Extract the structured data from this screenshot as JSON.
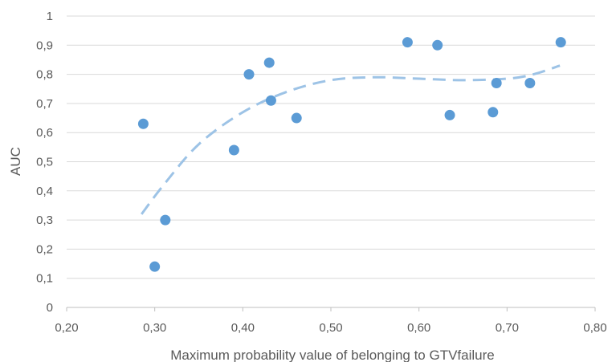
{
  "chart_data": {
    "type": "scatter",
    "title": "",
    "xlabel": "Maximum probability value of belonging to GTVfailure",
    "ylabel": "AUC",
    "xlim": [
      0.2,
      0.8
    ],
    "ylim": [
      0,
      1
    ],
    "x_ticks": [
      "0,20",
      "0,30",
      "0,40",
      "0,50",
      "0,60",
      "0,70",
      "0,80"
    ],
    "x_tick_values": [
      0.2,
      0.3,
      0.4,
      0.5,
      0.6,
      0.7,
      0.8
    ],
    "y_ticks": [
      "0",
      "0,1",
      "0,2",
      "0,3",
      "0,4",
      "0,5",
      "0,6",
      "0,7",
      "0,8",
      "0,9",
      "1"
    ],
    "y_tick_values": [
      0,
      0.1,
      0.2,
      0.3,
      0.4,
      0.5,
      0.6,
      0.7,
      0.8,
      0.9,
      1
    ],
    "grid": "horizontal",
    "legend": "none",
    "point_color": "#5b9bd5",
    "trend_color": "#9dc3e6",
    "trendline": "polynomial-dashed",
    "points": [
      {
        "x": 0.287,
        "y": 0.63
      },
      {
        "x": 0.3,
        "y": 0.14
      },
      {
        "x": 0.312,
        "y": 0.3
      },
      {
        "x": 0.39,
        "y": 0.54
      },
      {
        "x": 0.407,
        "y": 0.8
      },
      {
        "x": 0.43,
        "y": 0.84
      },
      {
        "x": 0.432,
        "y": 0.71
      },
      {
        "x": 0.461,
        "y": 0.65
      },
      {
        "x": 0.587,
        "y": 0.91
      },
      {
        "x": 0.621,
        "y": 0.9
      },
      {
        "x": 0.635,
        "y": 0.66
      },
      {
        "x": 0.684,
        "y": 0.67
      },
      {
        "x": 0.688,
        "y": 0.77
      },
      {
        "x": 0.726,
        "y": 0.77
      },
      {
        "x": 0.761,
        "y": 0.91
      }
    ],
    "trend_points": [
      {
        "x": 0.285,
        "y": 0.32
      },
      {
        "x": 0.31,
        "y": 0.42
      },
      {
        "x": 0.35,
        "y": 0.56
      },
      {
        "x": 0.4,
        "y": 0.67
      },
      {
        "x": 0.45,
        "y": 0.74
      },
      {
        "x": 0.5,
        "y": 0.78
      },
      {
        "x": 0.55,
        "y": 0.79
      },
      {
        "x": 0.6,
        "y": 0.785
      },
      {
        "x": 0.65,
        "y": 0.78
      },
      {
        "x": 0.7,
        "y": 0.785
      },
      {
        "x": 0.73,
        "y": 0.8
      },
      {
        "x": 0.76,
        "y": 0.83
      }
    ]
  }
}
